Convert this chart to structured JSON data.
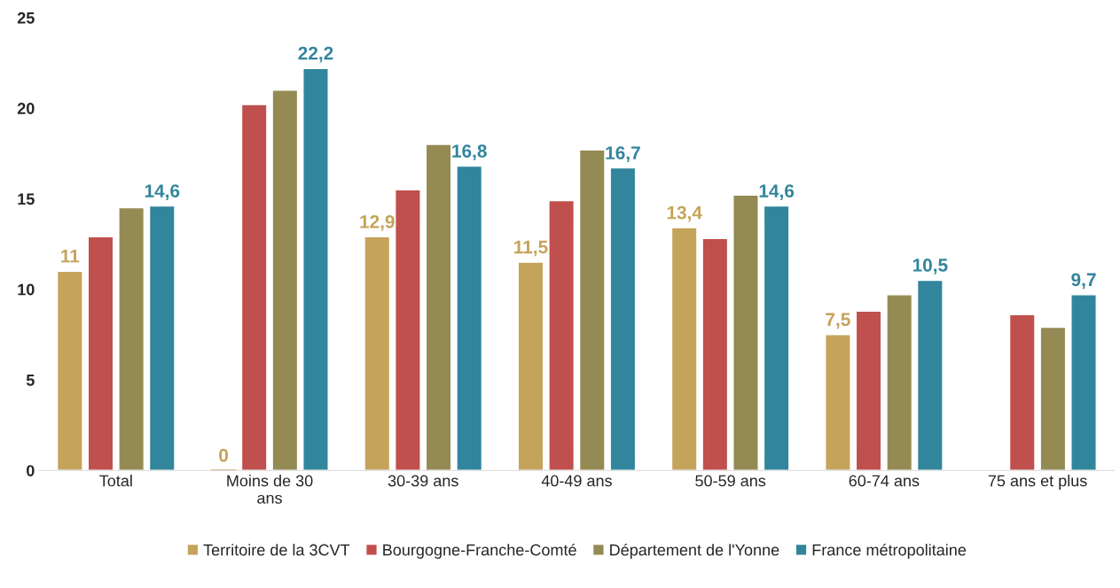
{
  "chart_data": {
    "type": "bar",
    "categories": [
      "Total",
      "Moins de 30 ans",
      "30-39 ans",
      "40-49 ans",
      "50-59 ans",
      "60-74 ans",
      "75 ans et plus"
    ],
    "series": [
      {
        "name": "Territoire de la 3CVT",
        "color": "#c4a35a",
        "values": [
          11,
          0,
          12.9,
          11.5,
          13.4,
          7.5,
          null
        ],
        "value_labels": [
          "11",
          "0",
          "12,9",
          "11,5",
          "13,4",
          "7,5",
          null
        ]
      },
      {
        "name": "Bourgogne-Franche-Comté",
        "color": "#c0504d",
        "values": [
          12.9,
          20.2,
          15.5,
          14.9,
          12.8,
          8.8,
          8.6
        ]
      },
      {
        "name": "Département de l'Yonne",
        "color": "#948a54",
        "values": [
          14.5,
          21,
          18,
          17.7,
          15.2,
          9.7,
          7.9
        ]
      },
      {
        "name": "France métropolitaine",
        "color": "#31859c",
        "values": [
          14.6,
          22.2,
          16.8,
          16.7,
          14.6,
          10.5,
          9.7
        ],
        "value_labels": [
          "14,6",
          "22,2",
          "16,8",
          "16,7",
          "14,6",
          "10,5",
          "9,7"
        ]
      }
    ],
    "ylim": [
      0,
      25
    ],
    "yticks": [
      0,
      5,
      10,
      15,
      20,
      25
    ],
    "grid": false,
    "legend": "bottom"
  }
}
